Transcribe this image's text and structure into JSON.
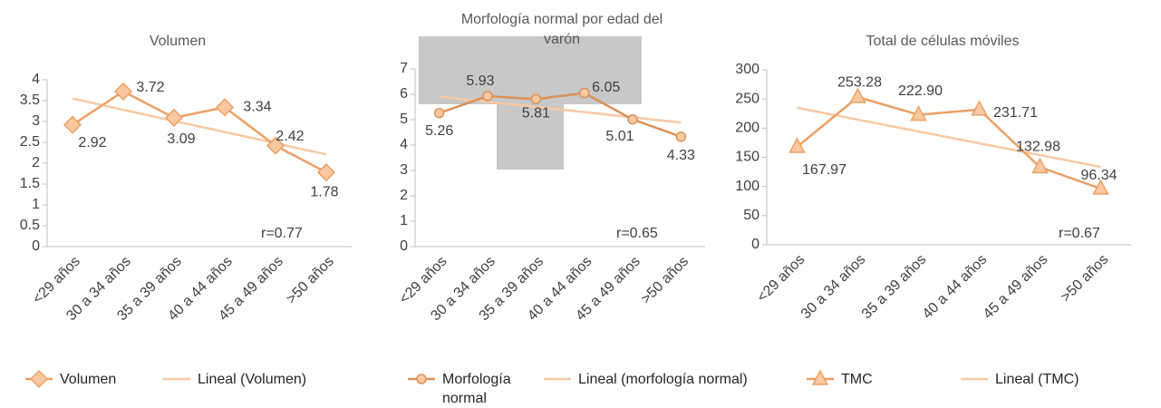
{
  "chart_data": [
    {
      "type": "line",
      "title": "Volumen",
      "categories": [
        "<29 años",
        "30 a 34 años",
        "35 a 39 años",
        "40 a 44 años",
        "45 a 49 años",
        ">50 años"
      ],
      "series": [
        {
          "name": "Volumen",
          "color": "#eda064",
          "marker": "diamond",
          "values": [
            2.92,
            3.72,
            3.09,
            3.34,
            2.42,
            1.78
          ]
        },
        {
          "name": "Lineal (Volumen)",
          "color": "#f7c9a3",
          "values": [
            3.55,
            3.28,
            3.01,
            2.75,
            2.48,
            2.21
          ]
        }
      ],
      "ylim": [
        0,
        4
      ],
      "yticks": [
        0,
        0.5,
        1,
        1.5,
        2,
        2.5,
        3,
        3.5,
        4
      ],
      "annotation": "r=0.77"
    },
    {
      "type": "line",
      "title": "Morfología normal por edad del varón",
      "categories": [
        "<29 años",
        "30 a 34 años",
        "35 a 39 años",
        "40 a 44 años",
        "45 a 49 años",
        ">50 años"
      ],
      "series": [
        {
          "name": "Morfología normal",
          "color": "#d9925a",
          "marker": "circle",
          "values": [
            5.26,
            5.93,
            5.81,
            6.05,
            5.01,
            4.33
          ]
        },
        {
          "name": "Lineal (morfología normal)",
          "color": "#f7c9a3",
          "values": [
            5.91,
            5.7,
            5.5,
            5.3,
            5.09,
            4.89
          ]
        }
      ],
      "ylim": [
        0,
        7
      ],
      "yticks": [
        0,
        1,
        2,
        3,
        4,
        5,
        6,
        7
      ],
      "annotation": "r=0.65"
    },
    {
      "type": "line",
      "title": "Total de células móviles",
      "categories": [
        "<29 años",
        "30 a 34 años",
        "35 a 39 años",
        "40 a 44 años",
        "45 a 49 años",
        ">50 años"
      ],
      "series": [
        {
          "name": "TMC",
          "color": "#eda064",
          "marker": "triangle",
          "values": [
            167.97,
            253.28,
            222.9,
            231.71,
            132.98,
            96.34
          ],
          "value_labels": [
            "167.97",
            "253.28",
            "222.90",
            "231.71",
            "132.98",
            "96.34"
          ]
        },
        {
          "name": "Lineal (TMC)",
          "color": "#f7c9a3",
          "values": [
            234.9,
            214.6,
            194.3,
            174.1,
            153.8,
            133.5
          ]
        }
      ],
      "ylim": [
        0,
        300
      ],
      "yticks": [
        0,
        50,
        100,
        150,
        200,
        250,
        300
      ],
      "annotation": "r=0.67"
    }
  ]
}
